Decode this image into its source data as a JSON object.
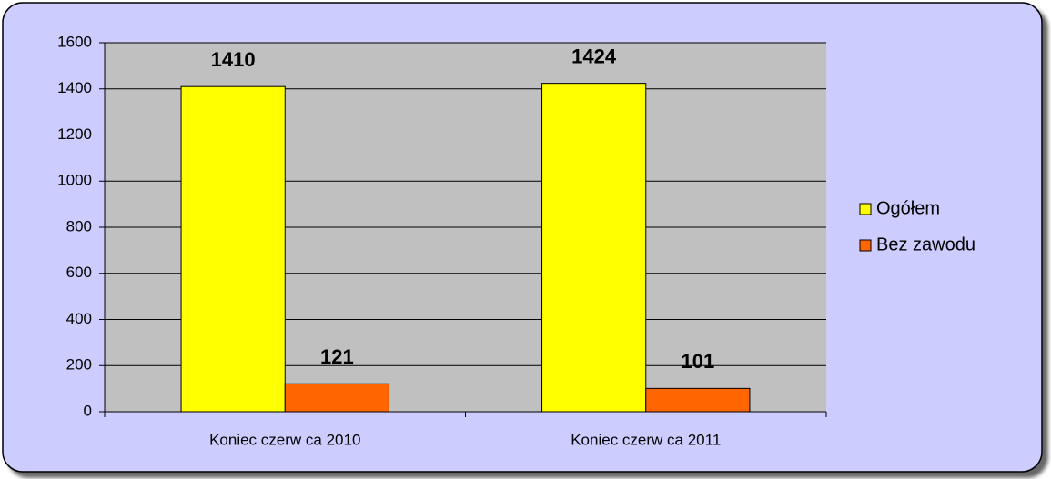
{
  "chart_data": {
    "type": "bar",
    "categories": [
      "Koniec czerw ca 2010",
      "Koniec czerw ca 2011"
    ],
    "series": [
      {
        "name": "Ogółem",
        "color": "#ffff00",
        "values": [
          1410,
          1424
        ]
      },
      {
        "name": "Bez zawodu",
        "color": "#ff6600",
        "values": [
          121,
          101
        ]
      }
    ],
    "ylim": [
      0,
      1600
    ],
    "yticks": [
      0,
      200,
      400,
      600,
      800,
      1000,
      1200,
      1400,
      1600
    ],
    "grid": true,
    "legend": "right"
  }
}
